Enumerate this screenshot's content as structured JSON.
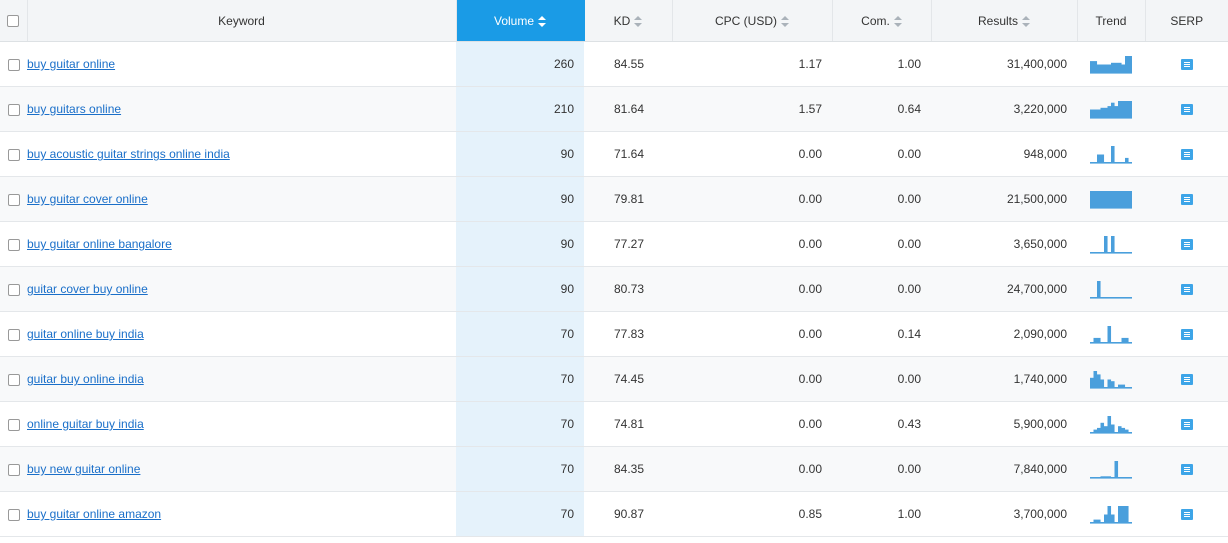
{
  "columns": {
    "keyword": "Keyword",
    "volume": "Volume",
    "kd": "KD",
    "cpc": "CPC (USD)",
    "com": "Com.",
    "results": "Results",
    "trend": "Trend",
    "serp": "SERP"
  },
  "accent_color": "#1a9be6",
  "rows": [
    {
      "keyword": "buy guitar online",
      "volume": "260",
      "kd": "84.55",
      "cpc": "1.17",
      "com": "1.00",
      "results": "31,400,000",
      "trend": [
        0.7,
        0.7,
        0.5,
        0.5,
        0.5,
        0.5,
        0.6,
        0.6,
        0.6,
        0.5,
        1,
        1
      ]
    },
    {
      "keyword": "buy guitars online",
      "volume": "210",
      "kd": "81.64",
      "cpc": "1.57",
      "com": "0.64",
      "results": "3,220,000",
      "trend": [
        0.5,
        0.5,
        0.5,
        0.6,
        0.6,
        0.7,
        0.9,
        0.7,
        1,
        1,
        1,
        1
      ]
    },
    {
      "keyword": "buy acoustic guitar strings online india",
      "volume": "90",
      "kd": "71.64",
      "cpc": "0.00",
      "com": "0.00",
      "results": "948,000",
      "trend": [
        0,
        0,
        0.5,
        0.5,
        0,
        0,
        1,
        0,
        0,
        0,
        0.3,
        0
      ]
    },
    {
      "keyword": "buy guitar cover online",
      "volume": "90",
      "kd": "79.81",
      "cpc": "0.00",
      "com": "0.00",
      "results": "21,500,000",
      "trend": [
        1,
        1,
        1,
        1,
        1,
        1,
        1,
        1,
        1,
        1,
        1,
        1
      ]
    },
    {
      "keyword": "buy guitar online bangalore",
      "volume": "90",
      "kd": "77.27",
      "cpc": "0.00",
      "com": "0.00",
      "results": "3,650,000",
      "trend": [
        0,
        0,
        0,
        0,
        1,
        0,
        1,
        0,
        0,
        0,
        0,
        0
      ]
    },
    {
      "keyword": "guitar cover buy online",
      "volume": "90",
      "kd": "80.73",
      "cpc": "0.00",
      "com": "0.00",
      "results": "24,700,000",
      "trend": [
        0,
        0,
        1,
        0,
        0,
        0,
        0,
        0,
        0,
        0,
        0,
        0
      ]
    },
    {
      "keyword": "guitar online buy india",
      "volume": "70",
      "kd": "77.83",
      "cpc": "0.00",
      "com": "0.14",
      "results": "2,090,000",
      "trend": [
        0,
        0.3,
        0.3,
        0,
        0,
        1,
        0,
        0,
        0,
        0.3,
        0.3,
        0
      ]
    },
    {
      "keyword": "guitar buy online india",
      "volume": "70",
      "kd": "74.45",
      "cpc": "0.00",
      "com": "0.00",
      "results": "1,740,000",
      "trend": [
        0.6,
        1,
        0.8,
        0.5,
        0,
        0.5,
        0.4,
        0,
        0.2,
        0.2,
        0,
        0
      ]
    },
    {
      "keyword": "online guitar buy india",
      "volume": "70",
      "kd": "74.81",
      "cpc": "0.00",
      "com": "0.43",
      "results": "5,900,000",
      "trend": [
        0,
        0.2,
        0.3,
        0.6,
        0.4,
        1,
        0.5,
        0,
        0.4,
        0.3,
        0.2,
        0
      ]
    },
    {
      "keyword": "buy new guitar online",
      "volume": "70",
      "kd": "84.35",
      "cpc": "0.00",
      "com": "0.00",
      "results": "7,840,000",
      "trend": [
        0,
        0,
        0,
        0.1,
        0.1,
        0.1,
        0,
        1,
        0,
        0,
        0,
        0
      ]
    },
    {
      "keyword": "buy guitar online amazon",
      "volume": "70",
      "kd": "90.87",
      "cpc": "0.85",
      "com": "1.00",
      "results": "3,700,000",
      "trend": [
        0,
        0.2,
        0.2,
        0,
        0.5,
        1,
        0.5,
        0,
        1,
        1,
        1,
        0
      ]
    }
  ]
}
